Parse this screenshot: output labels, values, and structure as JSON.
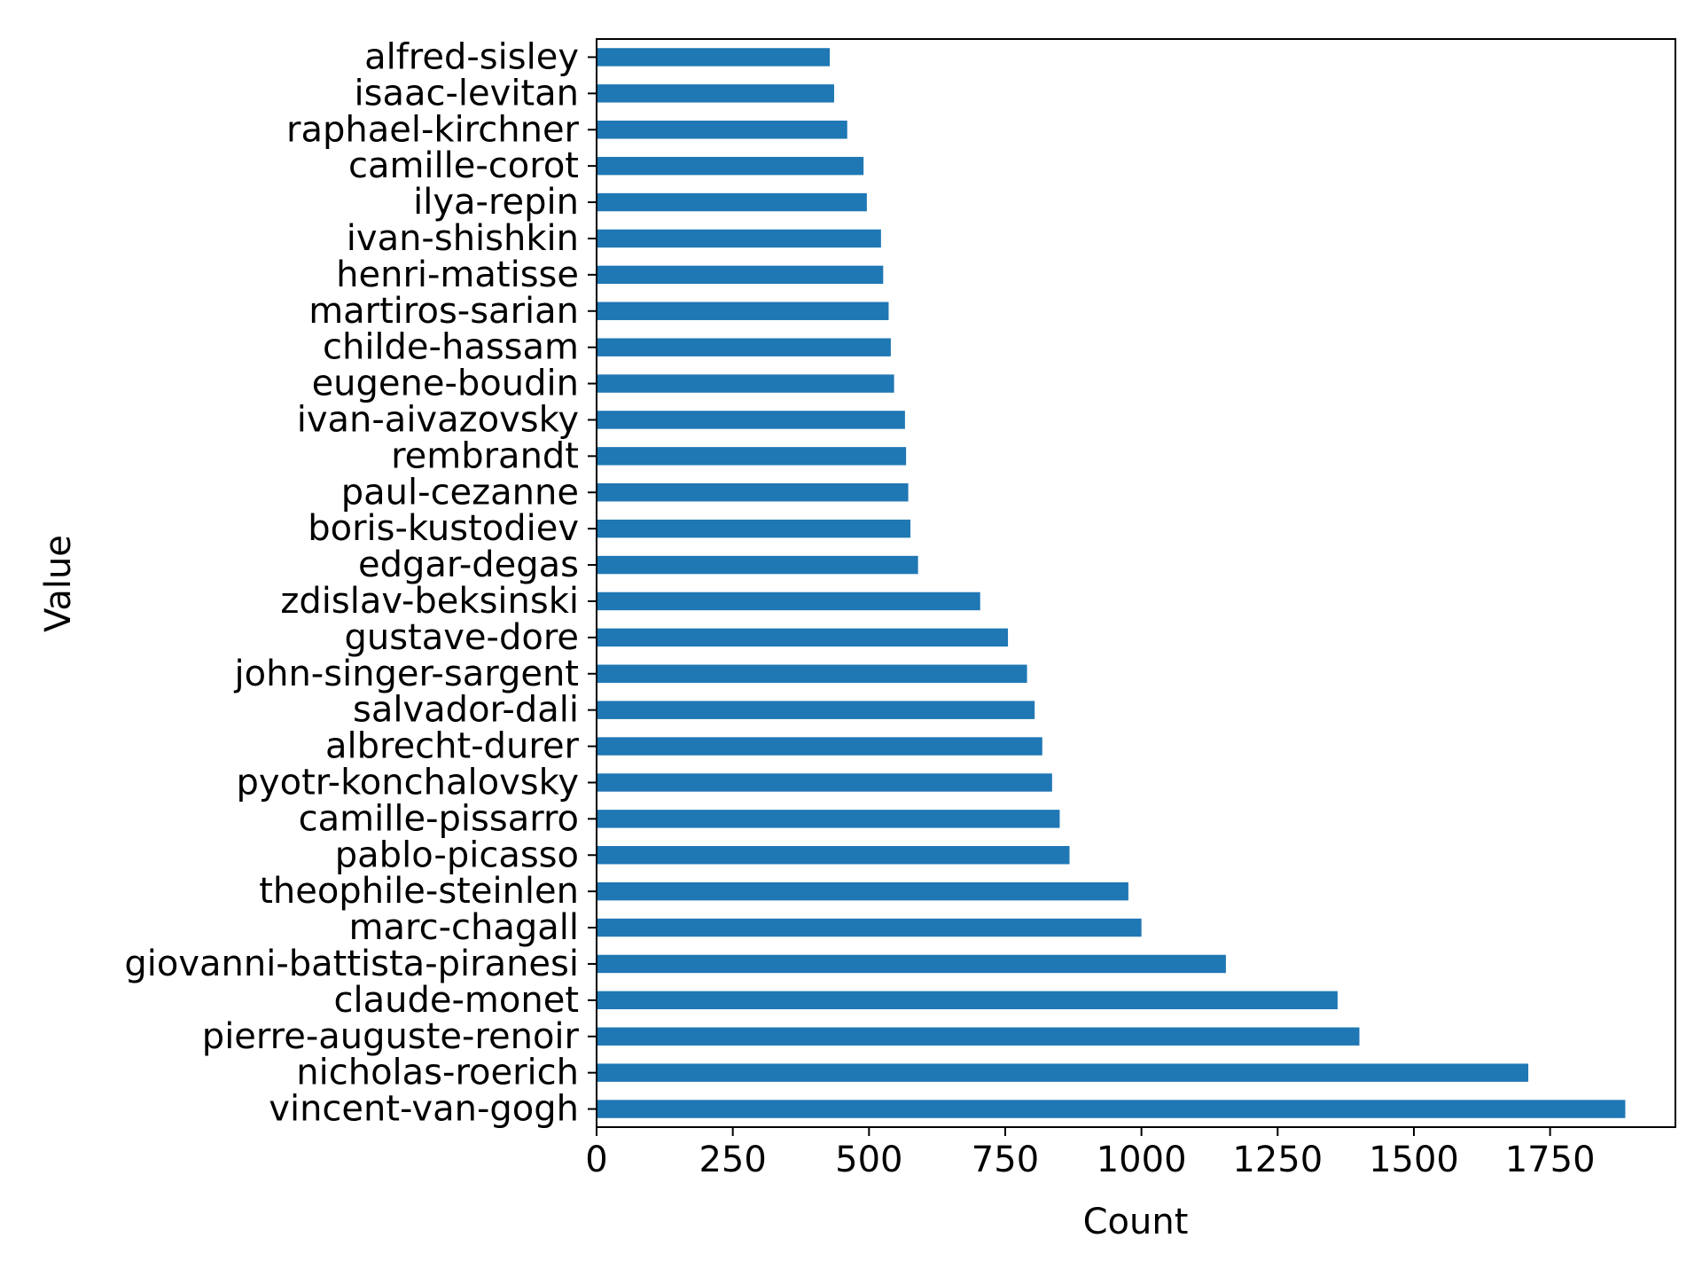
{
  "chart_data": {
    "type": "bar",
    "orientation": "horizontal",
    "xlabel": "Count",
    "ylabel": "Value",
    "xlim": [
      0,
      1980
    ],
    "xticks": [
      0,
      250,
      500,
      750,
      1000,
      1250,
      1500,
      1750
    ],
    "grid": false,
    "legend": "none",
    "bar_color": "#1f77b4",
    "categories": [
      "vincent-van-gogh",
      "nicholas-roerich",
      "pierre-auguste-renoir",
      "claude-monet",
      "giovanni-battista-piranesi",
      "marc-chagall",
      "theophile-steinlen",
      "pablo-picasso",
      "camille-pissarro",
      "pyotr-konchalovsky",
      "albrecht-durer",
      "salvador-dali",
      "john-singer-sargent",
      "gustave-dore",
      "zdislav-beksinski",
      "edgar-degas",
      "boris-kustodiev",
      "paul-cezanne",
      "rembrandt",
      "ivan-aivazovsky",
      "eugene-boudin",
      "childe-hassam",
      "martiros-sarian",
      "henri-matisse",
      "ivan-shishkin",
      "ilya-repin",
      "camille-corot",
      "raphael-kirchner",
      "isaac-levitan",
      "alfred-sisley"
    ],
    "values": [
      1888,
      1710,
      1400,
      1360,
      1155,
      1000,
      976,
      868,
      850,
      836,
      818,
      804,
      790,
      755,
      704,
      590,
      576,
      572,
      568,
      566,
      546,
      540,
      536,
      526,
      522,
      496,
      490,
      460,
      436,
      428
    ]
  }
}
